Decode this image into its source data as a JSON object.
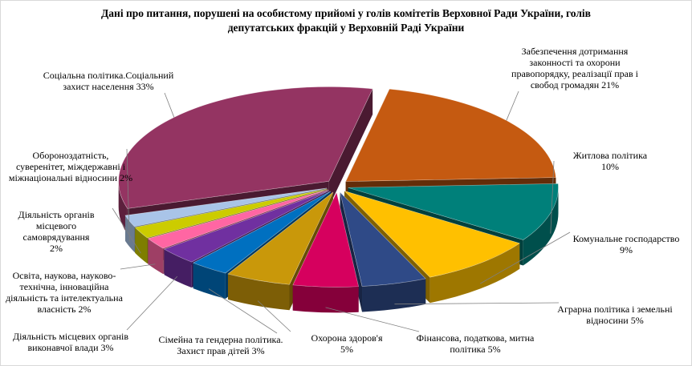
{
  "chart_data": {
    "type": "pie",
    "variant": "3d-exploded",
    "title": "Дані про питання, порушені на особистому прийомі у голів комітетів Верховної Ради України, голів депутатських фракцій у Верховній Раді України",
    "title_lines": [
      "Дані про питання,  порушені  на особистому  прийомі  у голів комітетів Верховної  Ради України,  голів",
      "депутатських  фракцій  у Верховній  Раді України"
    ],
    "slices": [
      {
        "label_lines": [
          "Забезпечення  дотримання",
          "законності  та охорони",
          "правопорядку, реалізації прав і",
          "свобод громадян 21%"
        ],
        "value": 21,
        "color": "#C55A11"
      },
      {
        "label_lines": [
          "Житлова політика",
          "10%"
        ],
        "value": 10,
        "color": "#00807A"
      },
      {
        "label_lines": [
          "Комунальне господарство",
          "9%"
        ],
        "value": 9,
        "color": "#FFC000"
      },
      {
        "label_lines": [
          "Аграрна політика і земельні",
          "відносини 5%"
        ],
        "value": 5,
        "color": "#2F4A87"
      },
      {
        "label_lines": [
          "Фінансова, податкова, митна",
          "політика 5%"
        ],
        "value": 5,
        "color": "#D6005E"
      },
      {
        "label_lines": [
          "Охорона здоров'я",
          "5%"
        ],
        "value": 5,
        "color": "#C9980A"
      },
      {
        "label_lines": [
          "Сімейна  та гендерна політика.",
          "Захист  прав дітей 3%"
        ],
        "value": 3,
        "color": "#0070C0"
      },
      {
        "label_lines": [
          "Діяльність місцевих  органів",
          "виконавчої влади 3%"
        ],
        "value": 3,
        "color": "#7030A0"
      },
      {
        "label_lines": [
          "Освіта, наукова, науково-",
          "технічна,  інноваційна",
          "діяльність та інтелектуальна",
          "власність 2%"
        ],
        "value": 2,
        "color": "#FF66A3"
      },
      {
        "label_lines": [
          "Діяльність органів",
          "місцевого",
          "самоврядування",
          "2%"
        ],
        "value": 2,
        "color": "#CCCC00"
      },
      {
        "label_lines": [
          "Обороноздатність,",
          "суверенітет, міждержавні  і",
          "міжнаціональні  відносини 2%"
        ],
        "value": 2,
        "color": "#A9C4E8"
      },
      {
        "label_lines": [
          "Соціальна політика.Соціальний",
          "захист  населення 33%"
        ],
        "value": 33,
        "color": "#943462"
      }
    ]
  }
}
